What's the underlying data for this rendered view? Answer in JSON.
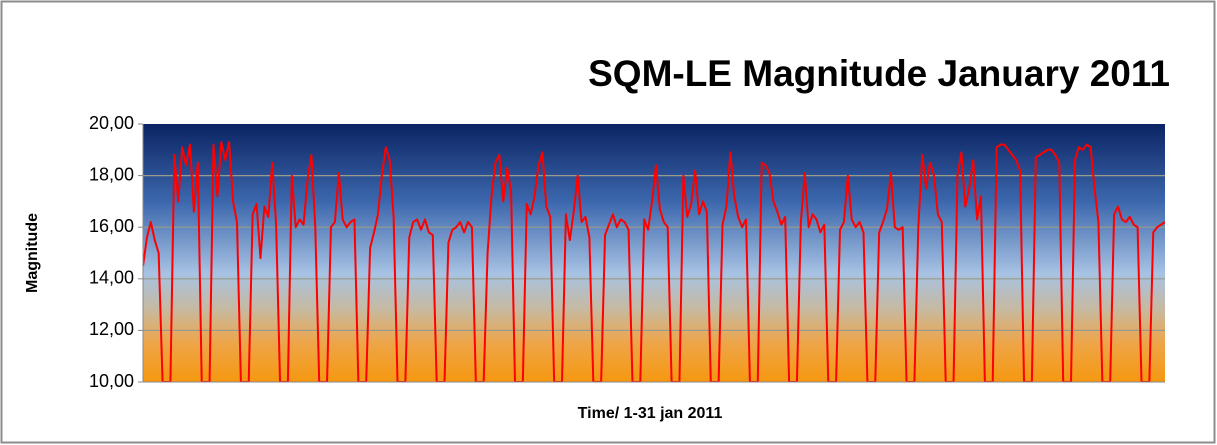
{
  "chart_data": {
    "type": "line",
    "title": "SQM-LE Magnitude January 2011",
    "xlabel": "Time/ 1-31 jan 2011",
    "ylabel": "Magnitude",
    "color": "#ff0000",
    "grid": true,
    "ylim": [
      10,
      20
    ],
    "yticks": [
      {
        "value": 10,
        "label": "10,00"
      },
      {
        "value": 12,
        "label": "12,00"
      },
      {
        "value": 14,
        "label": "14,00"
      },
      {
        "value": 16,
        "label": "16,00"
      },
      {
        "value": 18,
        "label": "18,00"
      },
      {
        "value": 20,
        "label": "20,00"
      }
    ],
    "values": [
      14.5,
      15.6,
      16.2,
      15.5,
      15.0,
      10,
      10,
      10,
      18.8,
      17.0,
      19.1,
      18.4,
      19.2,
      16.6,
      18.5,
      10,
      10,
      10,
      19.2,
      17.2,
      19.3,
      18.6,
      19.3,
      17.0,
      16.2,
      10,
      10,
      10,
      16.5,
      16.9,
      14.8,
      16.8,
      16.4,
      18.5,
      16.1,
      10,
      10,
      10,
      18.0,
      16.0,
      16.3,
      16.1,
      17.8,
      18.8,
      16.0,
      10,
      10,
      10,
      16.0,
      16.2,
      18.1,
      16.3,
      16.0,
      16.2,
      16.3,
      10,
      10,
      10,
      15.2,
      15.8,
      16.5,
      18.0,
      19.1,
      18.6,
      16.4,
      10,
      10,
      10,
      15.6,
      16.2,
      16.3,
      15.9,
      16.3,
      15.8,
      15.7,
      10,
      10,
      10,
      15.4,
      15.9,
      16.0,
      16.2,
      15.8,
      16.2,
      16.0,
      10,
      10,
      10,
      15.0,
      17.2,
      18.5,
      18.8,
      17.0,
      18.3,
      17.4,
      10,
      10,
      10,
      16.9,
      16.5,
      17.2,
      18.4,
      18.9,
      16.8,
      16.4,
      10,
      10,
      10,
      16.5,
      15.5,
      16.6,
      18.0,
      16.2,
      16.4,
      15.6,
      10,
      10,
      10,
      15.7,
      16.1,
      16.5,
      16.0,
      16.3,
      16.2,
      15.9,
      10,
      10,
      10,
      16.3,
      15.9,
      17.0,
      18.4,
      16.7,
      16.2,
      16.0,
      10,
      10,
      10,
      18.0,
      16.4,
      16.9,
      18.2,
      16.5,
      17.0,
      16.6,
      10,
      10,
      10,
      16.1,
      16.8,
      18.9,
      17.2,
      16.4,
      16.0,
      16.3,
      10,
      10,
      10,
      18.5,
      18.4,
      18.1,
      17.0,
      16.6,
      16.1,
      16.4,
      10,
      10,
      10,
      16.2,
      18.1,
      16.0,
      16.5,
      16.3,
      15.8,
      16.1,
      10,
      10,
      10,
      15.9,
      16.2,
      18.0,
      16.3,
      16.0,
      16.2,
      15.8,
      10,
      10,
      10,
      15.8,
      16.2,
      16.7,
      18.1,
      16.0,
      15.9,
      16.0,
      10,
      10,
      10,
      16.0,
      18.8,
      17.5,
      18.5,
      18.0,
      16.5,
      16.2,
      10,
      10,
      10,
      18.0,
      18.9,
      16.8,
      17.5,
      18.6,
      16.3,
      17.2,
      10,
      10,
      10,
      19.1,
      19.2,
      19.2,
      19.0,
      18.8,
      18.6,
      18.2,
      10,
      10,
      10,
      18.7,
      18.8,
      18.9,
      19.0,
      19.0,
      18.8,
      18.5,
      10,
      10,
      10,
      18.6,
      19.1,
      19.0,
      19.2,
      19.1,
      17.5,
      16.2,
      10,
      10,
      10,
      16.5,
      16.8,
      16.3,
      16.2,
      16.4,
      16.1,
      16.0,
      10,
      10,
      10,
      15.8,
      16.0,
      16.1,
      16.2
    ]
  }
}
